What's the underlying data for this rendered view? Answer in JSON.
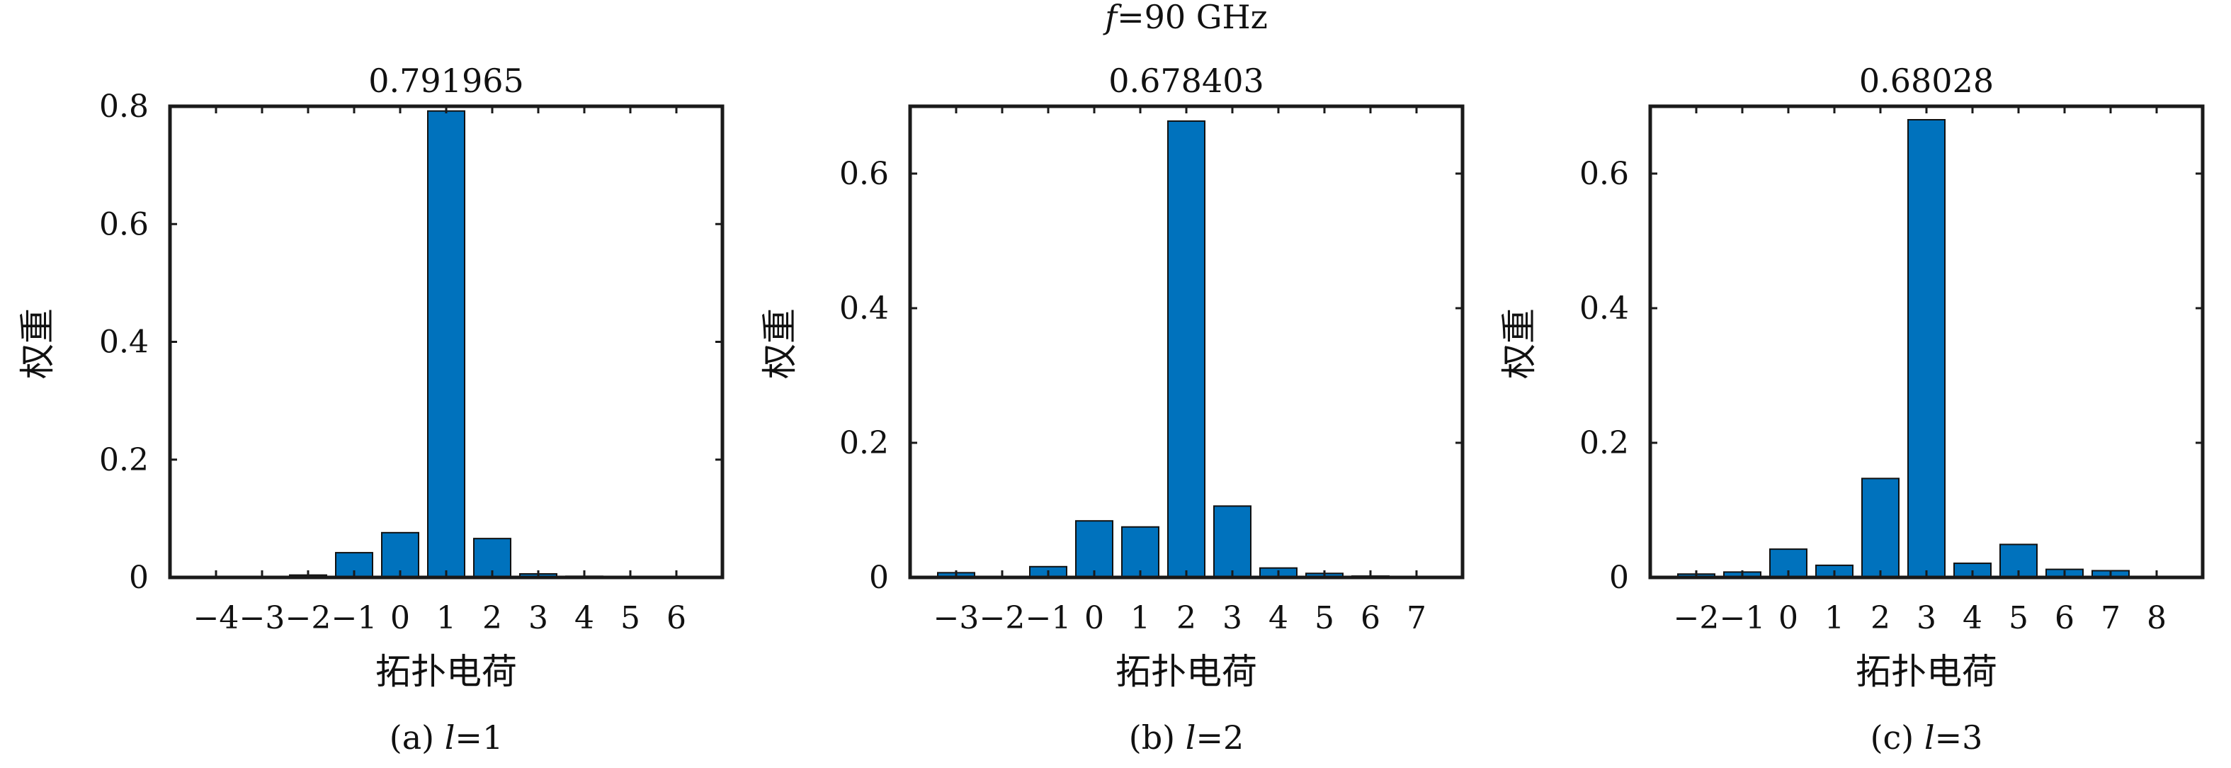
{
  "figure": {
    "suptitle": "f=90 GHz",
    "suptitle_var": "f",
    "suptitle_rest": "=90 GHz"
  },
  "chart_data": [
    {
      "type": "bar",
      "title": "0.791965",
      "xlabel": "拓扑电荷",
      "ylabel": "权重",
      "caption": "(a) l=1",
      "caption_pre": "(a) ",
      "caption_var": "l",
      "caption_post": "=1",
      "categories": [
        "−4",
        "−3",
        "−2",
        "−1",
        "0",
        "1",
        "2",
        "3",
        "4",
        "5",
        "6"
      ],
      "values": [
        0,
        0,
        0.004,
        0.042,
        0.076,
        0.792,
        0.066,
        0.006,
        0.002,
        0,
        0
      ],
      "ylim": [
        0,
        0.8
      ],
      "yticks": [
        "0",
        "0.2",
        "0.4",
        "0.6",
        "0.8"
      ],
      "ytick_values": [
        0,
        0.2,
        0.4,
        0.6,
        0.8
      ],
      "bar_color": "#0072BD",
      "grid": false
    },
    {
      "type": "bar",
      "title": "0.678403",
      "xlabel": "拓扑电荷",
      "ylabel": "权重",
      "caption": "(b) l=2",
      "caption_pre": "(b) ",
      "caption_var": "l",
      "caption_post": "=2",
      "categories": [
        "−3",
        "−2",
        "−1",
        "0",
        "1",
        "2",
        "3",
        "4",
        "5",
        "6",
        "7"
      ],
      "values": [
        0.007,
        0.001,
        0.016,
        0.084,
        0.075,
        0.678,
        0.106,
        0.014,
        0.006,
        0.002,
        0
      ],
      "ylim": [
        0,
        0.7
      ],
      "yticks": [
        "0",
        "0.2",
        "0.4",
        "0.6"
      ],
      "ytick_values": [
        0,
        0.2,
        0.4,
        0.6
      ],
      "bar_color": "#0072BD",
      "grid": false
    },
    {
      "type": "bar",
      "title": "0.68028",
      "xlabel": "拓扑电荷",
      "ylabel": "权重",
      "caption": "(c) l=3",
      "caption_pre": "(c) ",
      "caption_var": "l",
      "caption_post": "=3",
      "categories": [
        "−2",
        "−1",
        "0",
        "1",
        "2",
        "3",
        "4",
        "5",
        "6",
        "7",
        "8"
      ],
      "values": [
        0.005,
        0.008,
        0.042,
        0.018,
        0.147,
        0.68,
        0.021,
        0.049,
        0.012,
        0.01,
        0
      ],
      "ylim": [
        0,
        0.7
      ],
      "yticks": [
        "0",
        "0.2",
        "0.4",
        "0.6"
      ],
      "ytick_values": [
        0,
        0.2,
        0.4,
        0.6
      ],
      "bar_color": "#0072BD",
      "grid": false
    }
  ]
}
